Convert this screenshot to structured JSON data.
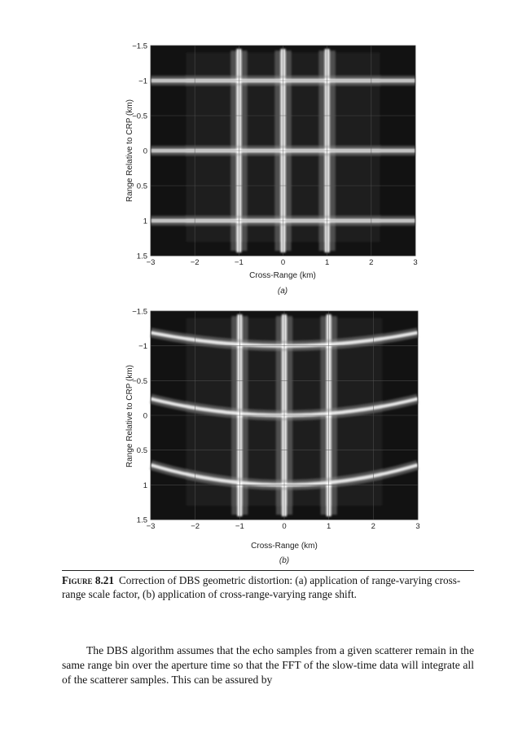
{
  "figures": [
    {
      "sublabel": "(a)",
      "xlabel": "Cross-Range (km)",
      "ylabel": "Range Relative to CRP (km)",
      "xticks": [
        "−3",
        "−2",
        "−1",
        "0",
        "1",
        "2",
        "3"
      ],
      "yticks": [
        "−1.5",
        "−1",
        "−0.5",
        "0",
        "0.5",
        "1",
        "1.5"
      ]
    },
    {
      "sublabel": "(b)",
      "xlabel": "Cross-Range (km)",
      "ylabel": "Range Relative to CRP (km)",
      "xticks": [
        "−3",
        "−2",
        "−1",
        "0",
        "1",
        "2",
        "3"
      ],
      "yticks": [
        "−1.5",
        "−1",
        "−0.5",
        "0",
        "0.5",
        "1",
        "1.5"
      ]
    }
  ],
  "chart_data": [
    {
      "type": "heatmap",
      "xlabel": "Cross-Range (km)",
      "ylabel": "Range Relative to CRP (km)",
      "xlim": [
        -3,
        3
      ],
      "ylim": [
        -1.5,
        1.5
      ],
      "y_inverted": true,
      "grid": true,
      "scatterers_x": [
        -1,
        0,
        1
      ],
      "scatterers_y": [
        -1,
        0,
        1
      ],
      "range_lines_curvature": 0
    },
    {
      "type": "heatmap",
      "xlabel": "Cross-Range (km)",
      "ylabel": "Range Relative to CRP (km)",
      "xlim": [
        -3,
        3
      ],
      "ylim": [
        -1.5,
        1.5
      ],
      "y_inverted": true,
      "grid": true,
      "scatterers_x": [
        -1,
        0,
        1
      ],
      "scatterers_y": [
        -1,
        0,
        1
      ],
      "range_lines_curvature": 0.02
    }
  ],
  "caption": {
    "lead": "Figure 8.21",
    "text": "Correction of DBS geometric distortion: (a) application of range-varying cross-range scale factor, (b) application of cross-range-varying range shift."
  },
  "body": "The DBS algorithm assumes that the echo samples from a given scatterer remain in the same range bin over the aperture time so that the FFT of the slow-time data will integrate all of the scatterer samples. This can be assured by"
}
